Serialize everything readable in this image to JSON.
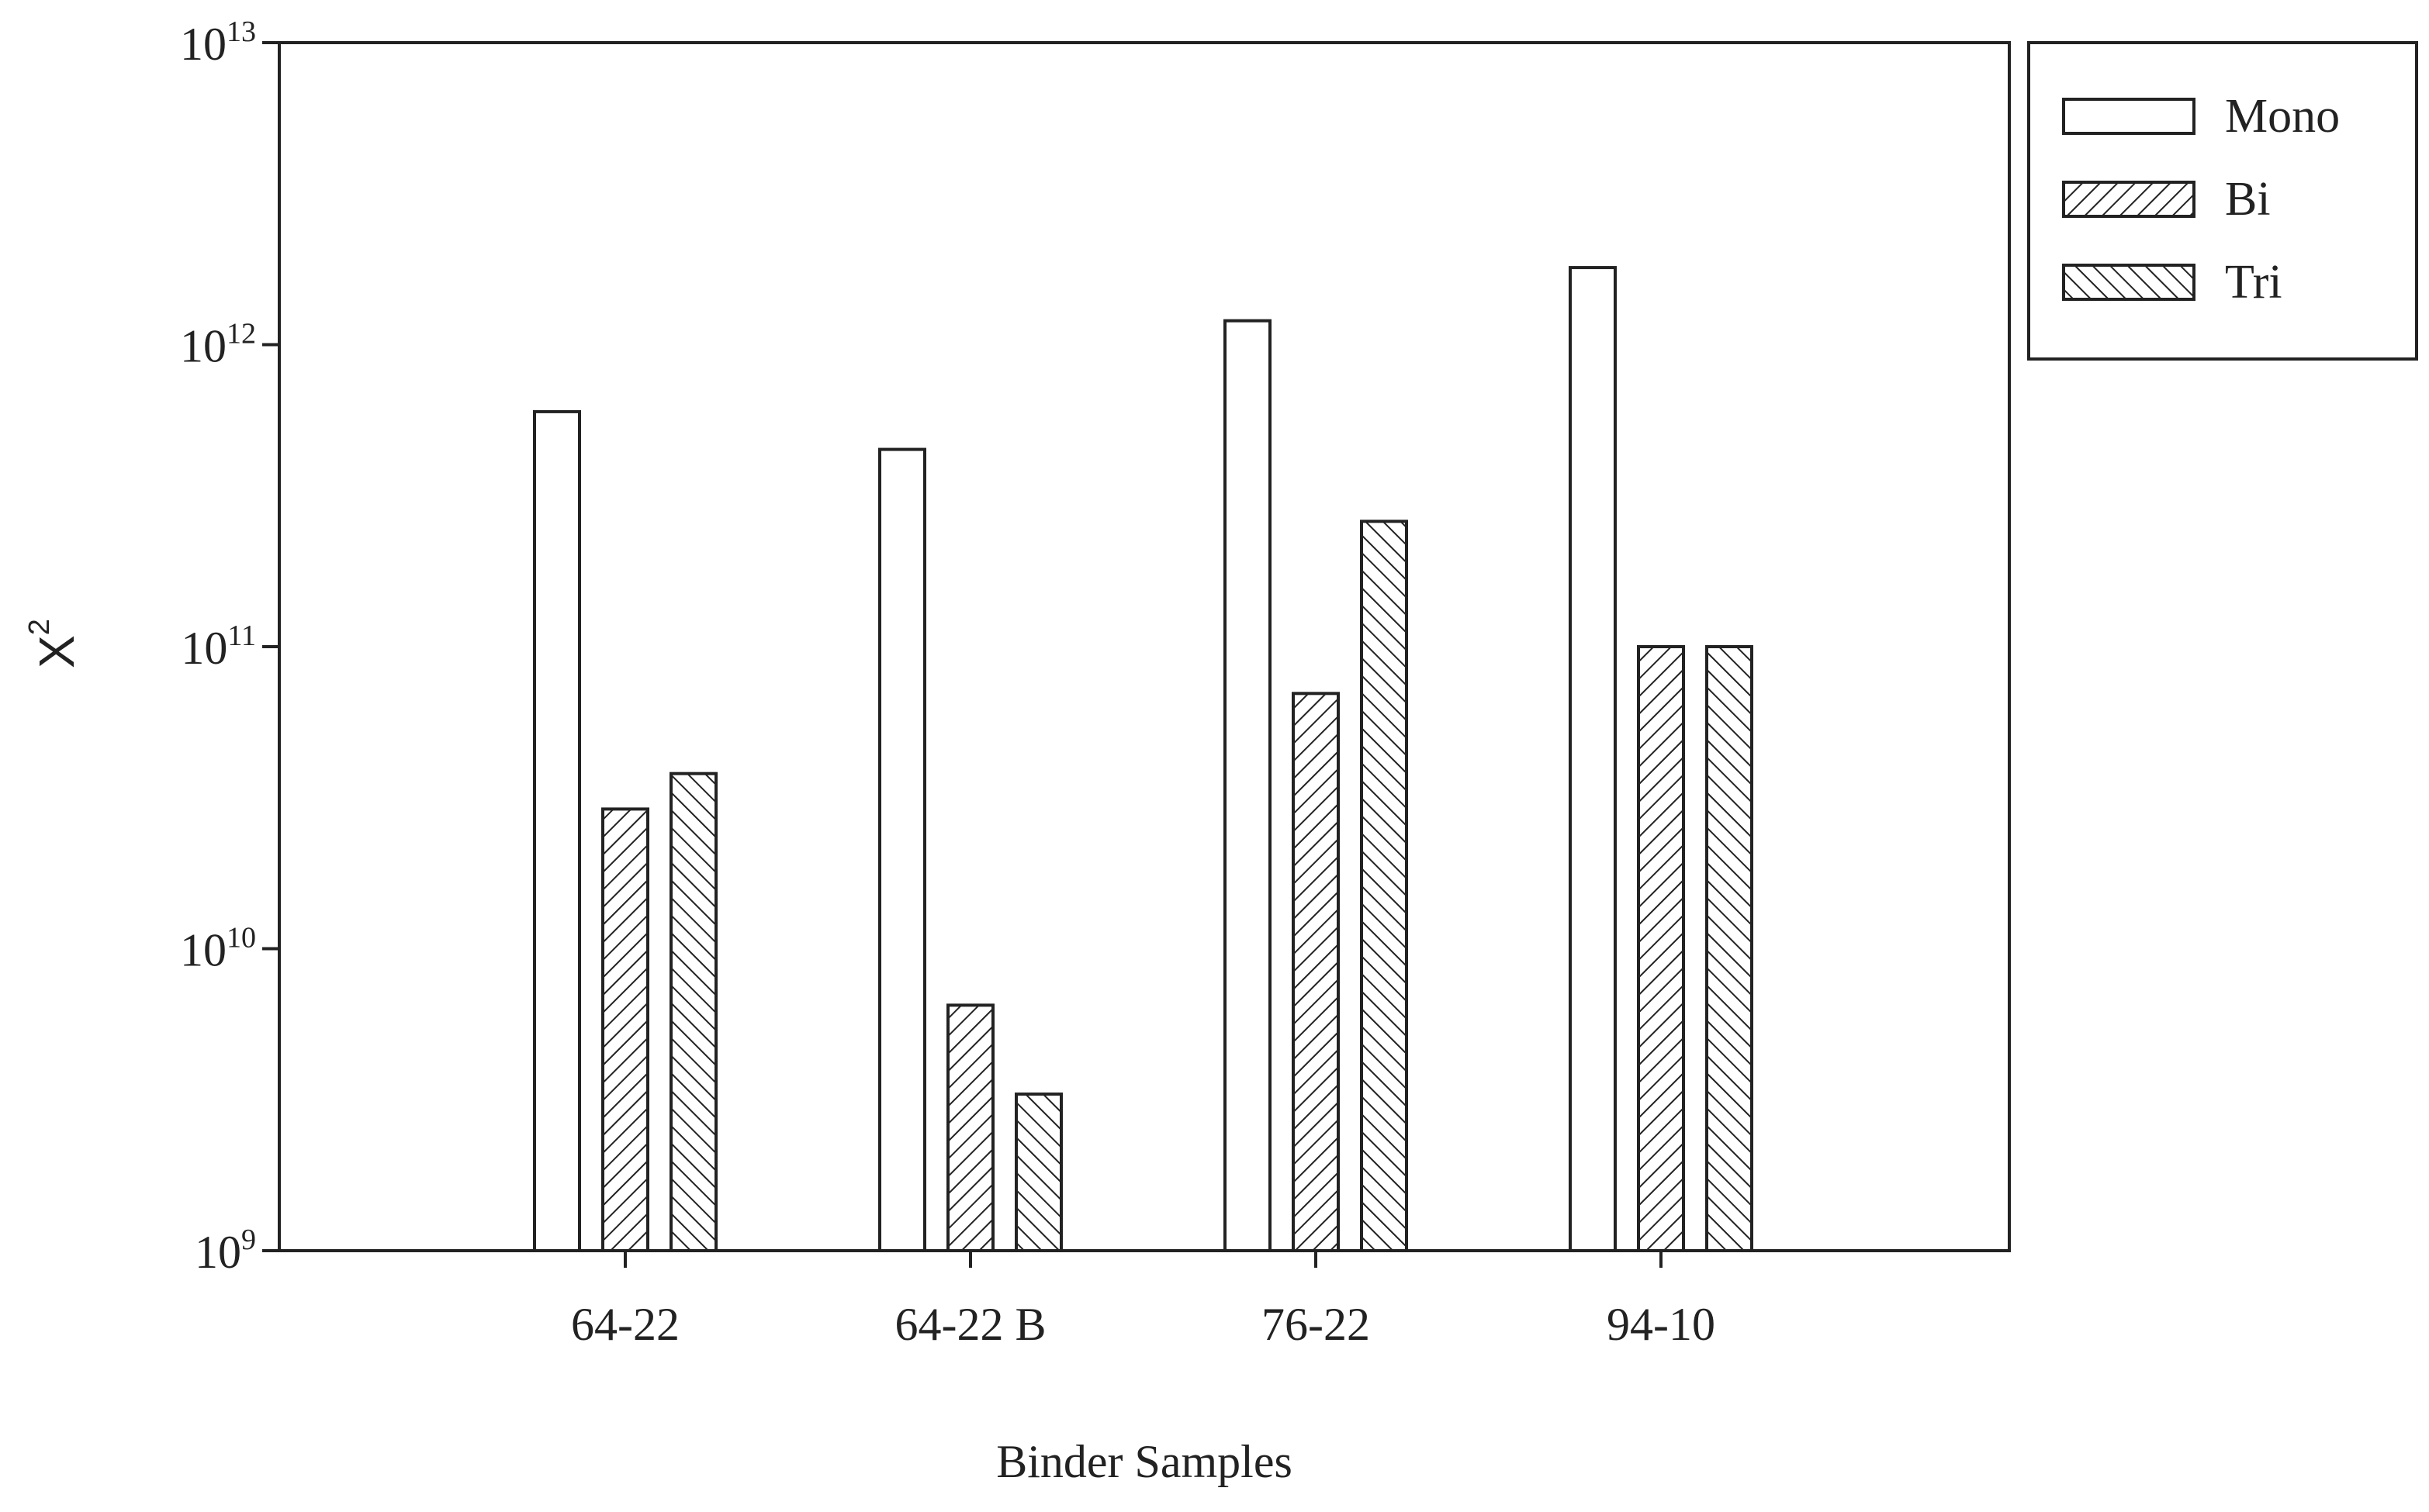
{
  "chart_data": {
    "type": "bar",
    "title": "",
    "xlabel": "Binder Samples",
    "ylabel": "X",
    "ylabel_sup": "2",
    "yscale": "log",
    "ylim": [
      1000000000,
      10000000000000
    ],
    "yticks": [
      {
        "base": "10",
        "exp": "9"
      },
      {
        "base": "10",
        "exp": "10"
      },
      {
        "base": "10",
        "exp": "11"
      },
      {
        "base": "10",
        "exp": "12"
      },
      {
        "base": "10",
        "exp": "13"
      }
    ],
    "categories": [
      "64-22",
      "64-22 B",
      "76-22",
      "94-10"
    ],
    "series": [
      {
        "name": "Mono",
        "pattern": "none",
        "values": [
          600000000000,
          450000000000,
          1200000000000,
          1800000000000
        ]
      },
      {
        "name": "Bi",
        "pattern": "forward-hatch",
        "values": [
          29000000000,
          6500000000,
          70000000000,
          100000000000
        ]
      },
      {
        "name": "Tri",
        "pattern": "back-hatch",
        "values": [
          38000000000,
          3300000000,
          260000000000,
          100000000000
        ]
      }
    ],
    "legend_position": "outside-top-right",
    "grid": false,
    "colors": {
      "stroke": "#222222",
      "fill": "#ffffff"
    }
  }
}
